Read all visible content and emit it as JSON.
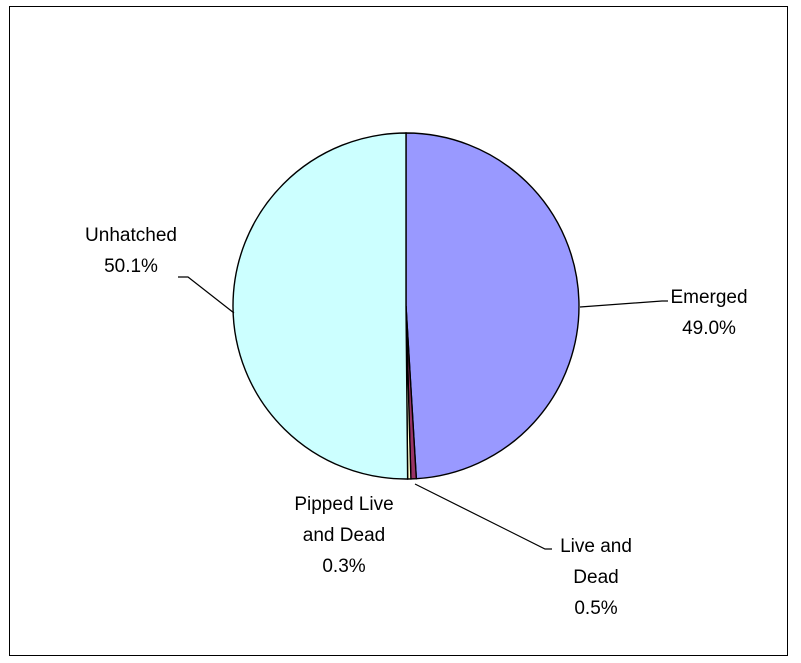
{
  "chart_data": {
    "type": "pie",
    "title": "",
    "slices": [
      {
        "label": [
          "Emerged"
        ],
        "percent_label": "49.0%",
        "value": 49.0,
        "color": "#9999ff"
      },
      {
        "label": [
          "Live and",
          "Dead"
        ],
        "percent_label": "0.5%",
        "value": 0.5,
        "color": "#993366"
      },
      {
        "label": [
          "Pipped Live",
          "and Dead"
        ],
        "percent_label": "0.3%",
        "value": 0.3,
        "color": "#ffffcc"
      },
      {
        "label": [
          "Unhatched"
        ],
        "percent_label": "50.1%",
        "value": 50.1,
        "color": "#ccffff"
      }
    ],
    "legend": "none",
    "start_angle": "12 o'clock",
    "direction": "clockwise"
  }
}
